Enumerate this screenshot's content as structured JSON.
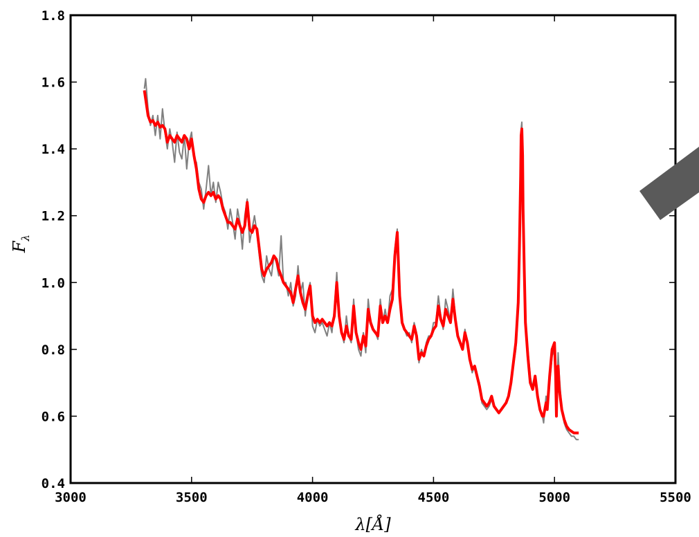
{
  "chart_data": {
    "type": "line",
    "title": "",
    "xlabel": "λ[Å]",
    "ylabel": "F_λ",
    "ylabel_main": "F",
    "ylabel_sub": "λ",
    "xlim": [
      3000,
      5500
    ],
    "ylim": [
      0.4,
      1.8
    ],
    "xticks": [
      3000,
      3500,
      4000,
      4500,
      5000,
      5500
    ],
    "yticks": [
      0.4,
      0.6,
      0.8,
      1.0,
      1.2,
      1.4,
      1.6,
      1.8
    ],
    "xtick_labels": [
      "3000",
      "3500",
      "4000",
      "4500",
      "5000",
      "5500"
    ],
    "ytick_labels": [
      "0.4",
      "0.6",
      "0.8",
      "1.0",
      "1.2",
      "1.4",
      "1.6",
      "1.8"
    ],
    "grid": false,
    "legend": "none",
    "series": [
      {
        "color": "#808080",
        "style": "observed (noisy)",
        "x": [
          3305,
          3310,
          3320,
          3330,
          3340,
          3350,
          3360,
          3370,
          3380,
          3390,
          3400,
          3410,
          3420,
          3430,
          3440,
          3450,
          3460,
          3470,
          3480,
          3490,
          3500,
          3510,
          3520,
          3530,
          3540,
          3550,
          3560,
          3570,
          3580,
          3590,
          3600,
          3610,
          3620,
          3630,
          3640,
          3650,
          3660,
          3670,
          3680,
          3690,
          3700,
          3710,
          3720,
          3730,
          3740,
          3750,
          3760,
          3770,
          3780,
          3790,
          3800,
          3810,
          3820,
          3830,
          3840,
          3850,
          3860,
          3870,
          3880,
          3890,
          3900,
          3910,
          3920,
          3930,
          3940,
          3950,
          3960,
          3970,
          3980,
          3990,
          4000,
          4010,
          4020,
          4030,
          4040,
          4050,
          4060,
          4070,
          4080,
          4090,
          4100,
          4110,
          4120,
          4130,
          4140,
          4150,
          4160,
          4170,
          4180,
          4190,
          4200,
          4210,
          4220,
          4230,
          4240,
          4250,
          4260,
          4270,
          4280,
          4290,
          4300,
          4310,
          4320,
          4330,
          4340,
          4350,
          4360,
          4370,
          4380,
          4390,
          4400,
          4410,
          4420,
          4430,
          4440,
          4450,
          4460,
          4470,
          4480,
          4490,
          4500,
          4510,
          4520,
          4530,
          4540,
          4550,
          4560,
          4570,
          4580,
          4590,
          4600,
          4610,
          4620,
          4630,
          4640,
          4650,
          4660,
          4670,
          4680,
          4690,
          4700,
          4710,
          4720,
          4730,
          4740,
          4750,
          4760,
          4770,
          4780,
          4790,
          4800,
          4810,
          4820,
          4830,
          4840,
          4850,
          4855,
          4860,
          4862,
          4865,
          4868,
          4870,
          4875,
          4880,
          4890,
          4900,
          4910,
          4920,
          4925,
          4930,
          4940,
          4950,
          4955,
          4960,
          4965,
          4970,
          4980,
          4990,
          5000,
          5005,
          5008,
          5010,
          5015,
          5020,
          5030,
          5040,
          5050,
          5060,
          5070,
          5080,
          5090,
          5100
        ],
        "y": [
          1.58,
          1.61,
          1.52,
          1.47,
          1.5,
          1.44,
          1.5,
          1.43,
          1.52,
          1.45,
          1.4,
          1.46,
          1.42,
          1.36,
          1.45,
          1.39,
          1.37,
          1.44,
          1.34,
          1.42,
          1.45,
          1.37,
          1.36,
          1.3,
          1.28,
          1.22,
          1.28,
          1.35,
          1.26,
          1.3,
          1.24,
          1.3,
          1.27,
          1.23,
          1.21,
          1.16,
          1.22,
          1.18,
          1.13,
          1.22,
          1.18,
          1.1,
          1.2,
          1.25,
          1.12,
          1.16,
          1.2,
          1.15,
          1.08,
          1.02,
          1.0,
          1.08,
          1.04,
          1.02,
          1.08,
          1.06,
          1.02,
          1.14,
          1.0,
          1.0,
          0.96,
          1.0,
          0.93,
          0.96,
          1.05,
          0.97,
          1.0,
          0.9,
          0.97,
          1.0,
          0.87,
          0.85,
          0.89,
          0.87,
          0.88,
          0.86,
          0.84,
          0.88,
          0.85,
          0.92,
          1.03,
          0.9,
          0.85,
          0.82,
          0.9,
          0.84,
          0.82,
          0.95,
          0.85,
          0.8,
          0.78,
          0.85,
          0.79,
          0.95,
          0.88,
          0.86,
          0.85,
          0.83,
          0.95,
          0.88,
          0.92,
          0.88,
          0.96,
          0.98,
          1.1,
          1.16,
          0.95,
          0.88,
          0.86,
          0.84,
          0.85,
          0.82,
          0.88,
          0.85,
          0.76,
          0.8,
          0.78,
          0.82,
          0.84,
          0.84,
          0.88,
          0.88,
          0.96,
          0.9,
          0.86,
          0.95,
          0.92,
          0.88,
          0.98,
          0.9,
          0.84,
          0.82,
          0.8,
          0.86,
          0.82,
          0.77,
          0.73,
          0.75,
          0.72,
          0.7,
          0.64,
          0.63,
          0.62,
          0.63,
          0.65,
          0.63,
          0.62,
          0.61,
          0.62,
          0.63,
          0.64,
          0.66,
          0.7,
          0.75,
          0.8,
          0.92,
          1.05,
          1.3,
          1.46,
          1.48,
          1.4,
          1.25,
          1.05,
          0.9,
          0.8,
          0.72,
          0.68,
          0.7,
          0.68,
          0.66,
          0.62,
          0.6,
          0.58,
          0.62,
          0.66,
          0.62,
          0.7,
          0.78,
          0.8,
          0.7,
          0.6,
          0.65,
          0.79,
          0.72,
          0.62,
          0.58,
          0.56,
          0.55,
          0.54,
          0.54,
          0.53,
          0.53
        ]
      },
      {
        "color": "#ff0000",
        "style": "model (smooth)",
        "x": [
          3305,
          3310,
          3320,
          3330,
          3340,
          3350,
          3360,
          3370,
          3380,
          3390,
          3400,
          3410,
          3420,
          3430,
          3440,
          3450,
          3460,
          3470,
          3480,
          3490,
          3500,
          3510,
          3520,
          3530,
          3540,
          3550,
          3560,
          3570,
          3580,
          3590,
          3600,
          3610,
          3620,
          3630,
          3640,
          3650,
          3660,
          3670,
          3680,
          3690,
          3700,
          3710,
          3720,
          3730,
          3740,
          3750,
          3760,
          3770,
          3780,
          3790,
          3800,
          3810,
          3820,
          3830,
          3840,
          3850,
          3860,
          3870,
          3880,
          3890,
          3900,
          3910,
          3920,
          3930,
          3940,
          3950,
          3960,
          3970,
          3980,
          3990,
          4000,
          4010,
          4020,
          4030,
          4040,
          4050,
          4060,
          4070,
          4080,
          4090,
          4100,
          4110,
          4120,
          4130,
          4140,
          4150,
          4160,
          4170,
          4180,
          4190,
          4200,
          4210,
          4220,
          4230,
          4240,
          4250,
          4260,
          4270,
          4280,
          4290,
          4300,
          4310,
          4320,
          4330,
          4340,
          4350,
          4360,
          4370,
          4380,
          4390,
          4400,
          4410,
          4420,
          4430,
          4440,
          4450,
          4460,
          4470,
          4480,
          4490,
          4500,
          4510,
          4520,
          4530,
          4540,
          4550,
          4560,
          4570,
          4580,
          4590,
          4600,
          4610,
          4620,
          4630,
          4640,
          4650,
          4660,
          4670,
          4680,
          4690,
          4700,
          4710,
          4720,
          4730,
          4740,
          4750,
          4760,
          4770,
          4780,
          4790,
          4800,
          4810,
          4820,
          4830,
          4840,
          4850,
          4855,
          4860,
          4862,
          4865,
          4868,
          4870,
          4875,
          4880,
          4890,
          4900,
          4910,
          4920,
          4925,
          4930,
          4940,
          4950,
          4955,
          4960,
          4965,
          4970,
          4980,
          4990,
          5000,
          5005,
          5008,
          5010,
          5015,
          5020,
          5030,
          5040,
          5050,
          5060,
          5070,
          5080,
          5090,
          5100
        ],
        "y": [
          1.575,
          1.55,
          1.5,
          1.48,
          1.485,
          1.47,
          1.48,
          1.465,
          1.47,
          1.46,
          1.42,
          1.44,
          1.43,
          1.42,
          1.44,
          1.43,
          1.42,
          1.44,
          1.43,
          1.4,
          1.43,
          1.38,
          1.34,
          1.28,
          1.25,
          1.24,
          1.26,
          1.27,
          1.26,
          1.27,
          1.25,
          1.26,
          1.25,
          1.22,
          1.2,
          1.18,
          1.18,
          1.17,
          1.16,
          1.19,
          1.17,
          1.15,
          1.17,
          1.24,
          1.16,
          1.15,
          1.17,
          1.16,
          1.1,
          1.04,
          1.02,
          1.04,
          1.05,
          1.06,
          1.08,
          1.07,
          1.04,
          1.02,
          1.0,
          0.99,
          0.98,
          0.97,
          0.94,
          0.98,
          1.02,
          0.97,
          0.94,
          0.92,
          0.96,
          0.99,
          0.9,
          0.88,
          0.89,
          0.88,
          0.89,
          0.88,
          0.87,
          0.88,
          0.87,
          0.9,
          1.0,
          0.9,
          0.85,
          0.83,
          0.87,
          0.84,
          0.83,
          0.93,
          0.85,
          0.82,
          0.8,
          0.84,
          0.81,
          0.92,
          0.88,
          0.86,
          0.85,
          0.84,
          0.93,
          0.88,
          0.9,
          0.88,
          0.92,
          0.95,
          1.08,
          1.15,
          0.96,
          0.88,
          0.86,
          0.85,
          0.84,
          0.83,
          0.87,
          0.84,
          0.77,
          0.79,
          0.78,
          0.81,
          0.83,
          0.84,
          0.86,
          0.87,
          0.93,
          0.89,
          0.87,
          0.92,
          0.9,
          0.88,
          0.95,
          0.89,
          0.84,
          0.82,
          0.8,
          0.85,
          0.82,
          0.77,
          0.74,
          0.75,
          0.72,
          0.69,
          0.65,
          0.64,
          0.63,
          0.64,
          0.66,
          0.63,
          0.62,
          0.61,
          0.62,
          0.63,
          0.64,
          0.66,
          0.7,
          0.76,
          0.82,
          0.94,
          1.1,
          1.32,
          1.44,
          1.46,
          1.38,
          1.22,
          1.04,
          0.88,
          0.78,
          0.7,
          0.68,
          0.72,
          0.69,
          0.66,
          0.62,
          0.6,
          0.6,
          0.62,
          0.64,
          0.62,
          0.72,
          0.8,
          0.82,
          0.72,
          0.6,
          0.68,
          0.75,
          0.68,
          0.62,
          0.59,
          0.57,
          0.56,
          0.555,
          0.55,
          0.55,
          0.55
        ]
      }
    ]
  }
}
